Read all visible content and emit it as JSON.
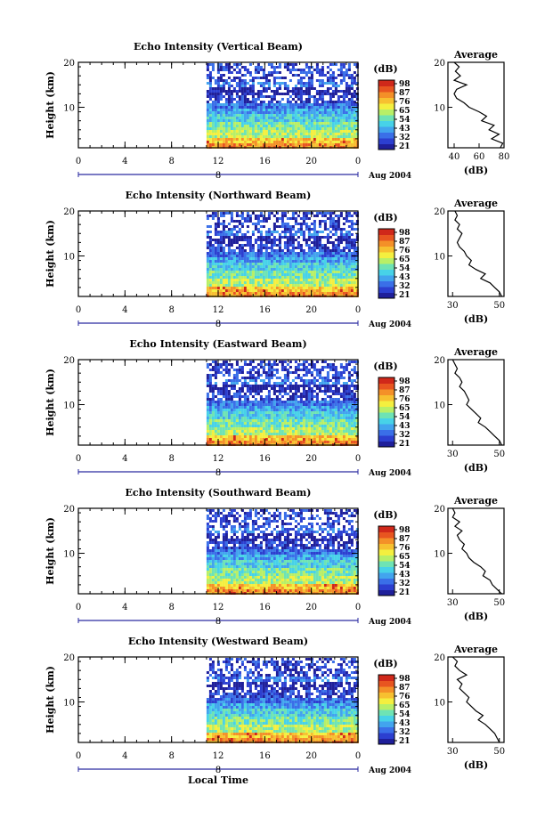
{
  "page": {
    "x_title": "Local Time"
  },
  "colors": {
    "colorbar": [
      "#1f1f9a",
      "#2c3fd0",
      "#3a6fe8",
      "#42a4ee",
      "#47d2e8",
      "#6ee3b4",
      "#b8ef67",
      "#f4ef3f",
      "#f7c030",
      "#f49028",
      "#e85520",
      "#d0281a"
    ],
    "line": "#000000",
    "background": "#ffffff"
  },
  "chart_data": [
    {
      "type": "heatmap",
      "title": "Echo Intensity (Vertical Beam)",
      "ylabel": "Height (km)",
      "x_ticks": [
        "0",
        "4",
        "8",
        "12",
        "16",
        "20",
        "0"
      ],
      "x_range": [
        0,
        24
      ],
      "date_label": "8",
      "date_suffix": "Aug 2004",
      "y_ticks": [
        "20",
        "10"
      ],
      "ylim": [
        1,
        20
      ],
      "data_start_hour": 11,
      "colorbar": {
        "unit": "(dB)",
        "ticks": [
          "98",
          "87",
          "76",
          "65",
          "54",
          "43",
          "32",
          "21"
        ]
      },
      "profile": {
        "title": "Average",
        "xlabel": "(dB)",
        "x_ticks": [
          "40",
          "60",
          "80"
        ],
        "xlim": [
          35,
          80
        ],
        "y_ticks": [
          "20",
          "10"
        ],
        "height_km": [
          20,
          19,
          18,
          17,
          16,
          15,
          14,
          13,
          12,
          11,
          10,
          9,
          8,
          7,
          6,
          5,
          4,
          3,
          2,
          1
        ],
        "db": [
          40,
          44,
          41,
          45,
          40,
          50,
          42,
          40,
          42,
          48,
          52,
          60,
          66,
          62,
          72,
          68,
          76,
          70,
          79,
          77
        ]
      }
    },
    {
      "type": "heatmap",
      "title": "Echo Intensity (Northward Beam)",
      "ylabel": "Height (km)",
      "x_ticks": [
        "0",
        "4",
        "8",
        "12",
        "16",
        "20",
        "0"
      ],
      "x_range": [
        0,
        24
      ],
      "date_label": "8",
      "date_suffix": "Aug 2004",
      "y_ticks": [
        "20",
        "10"
      ],
      "ylim": [
        1,
        20
      ],
      "data_start_hour": 11,
      "colorbar": {
        "unit": "(dB)",
        "ticks": [
          "98",
          "87",
          "76",
          "65",
          "54",
          "43",
          "32",
          "21"
        ]
      },
      "profile": {
        "title": "Average",
        "xlabel": "(dB)",
        "x_ticks": [
          "30",
          "50"
        ],
        "xlim": [
          28,
          52
        ],
        "y_ticks": [
          "20",
          "10"
        ],
        "height_km": [
          20,
          19,
          18,
          17,
          16,
          15,
          14,
          13,
          12,
          11,
          10,
          9,
          8,
          7,
          6,
          5,
          4,
          3,
          2,
          1
        ],
        "db": [
          31,
          32,
          31,
          33,
          32,
          34,
          33,
          32,
          33,
          35,
          36,
          38,
          37,
          40,
          44,
          42,
          46,
          48,
          50,
          51
        ]
      }
    },
    {
      "type": "heatmap",
      "title": "Echo Intensity (Eastward Beam)",
      "ylabel": "Height (km)",
      "x_ticks": [
        "0",
        "4",
        "8",
        "12",
        "16",
        "20",
        "0"
      ],
      "x_range": [
        0,
        24
      ],
      "date_label": "8",
      "date_suffix": "Aug 2004",
      "y_ticks": [
        "20",
        "10"
      ],
      "ylim": [
        1,
        20
      ],
      "data_start_hour": 11,
      "colorbar": {
        "unit": "(dB)",
        "ticks": [
          "98",
          "87",
          "76",
          "65",
          "54",
          "43",
          "32",
          "21"
        ]
      },
      "profile": {
        "title": "Average",
        "xlabel": "(dB)",
        "x_ticks": [
          "30",
          "50"
        ],
        "xlim": [
          28,
          52
        ],
        "y_ticks": [
          "20",
          "10"
        ],
        "height_km": [
          20,
          19,
          18,
          17,
          16,
          15,
          14,
          13,
          12,
          11,
          10,
          9,
          8,
          7,
          6,
          5,
          4,
          3,
          2,
          1
        ],
        "db": [
          30,
          31,
          32,
          31,
          33,
          34,
          33,
          35,
          36,
          37,
          36,
          38,
          40,
          42,
          41,
          44,
          46,
          48,
          50,
          51
        ]
      }
    },
    {
      "type": "heatmap",
      "title": "Echo Intensity (Southward Beam)",
      "ylabel": "Height (km)",
      "x_ticks": [
        "0",
        "4",
        "8",
        "12",
        "16",
        "20",
        "0"
      ],
      "x_range": [
        0,
        24
      ],
      "date_label": "8",
      "date_suffix": "Aug 2004",
      "y_ticks": [
        "20",
        "10"
      ],
      "ylim": [
        1,
        20
      ],
      "data_start_hour": 11,
      "colorbar": {
        "unit": "(dB)",
        "ticks": [
          "98",
          "87",
          "76",
          "65",
          "54",
          "43",
          "32",
          "21"
        ]
      },
      "profile": {
        "title": "Average",
        "xlabel": "(dB)",
        "x_ticks": [
          "30",
          "50"
        ],
        "xlim": [
          28,
          52
        ],
        "y_ticks": [
          "20",
          "10"
        ],
        "height_km": [
          20,
          19,
          18,
          17,
          16,
          15,
          14,
          13,
          12,
          11,
          10,
          9,
          8,
          7,
          6,
          5,
          4,
          3,
          2,
          1
        ],
        "db": [
          30,
          31,
          30,
          33,
          31,
          34,
          32,
          33,
          35,
          34,
          36,
          37,
          39,
          42,
          44,
          43,
          46,
          47,
          49,
          51
        ]
      }
    },
    {
      "type": "heatmap",
      "title": "Echo Intensity (Westward Beam)",
      "ylabel": "Height (km)",
      "x_ticks": [
        "0",
        "4",
        "8",
        "12",
        "16",
        "20",
        "0"
      ],
      "x_range": [
        0,
        24
      ],
      "date_label": "8",
      "date_suffix": "Aug 2004",
      "y_ticks": [
        "20",
        "10"
      ],
      "ylim": [
        1,
        20
      ],
      "data_start_hour": 11,
      "colorbar": {
        "unit": "(dB)",
        "ticks": [
          "98",
          "87",
          "76",
          "65",
          "54",
          "43",
          "32",
          "21"
        ]
      },
      "profile": {
        "title": "Average",
        "xlabel": "(dB)",
        "x_ticks": [
          "30",
          "50"
        ],
        "xlim": [
          28,
          52
        ],
        "y_ticks": [
          "20",
          "10"
        ],
        "height_km": [
          20,
          19,
          18,
          17,
          16,
          15,
          14,
          13,
          12,
          11,
          10,
          9,
          8,
          7,
          6,
          5,
          4,
          3,
          2,
          1
        ],
        "db": [
          30,
          32,
          31,
          33,
          36,
          32,
          34,
          33,
          35,
          37,
          36,
          38,
          40,
          43,
          41,
          44,
          46,
          48,
          49,
          50
        ]
      }
    }
  ]
}
